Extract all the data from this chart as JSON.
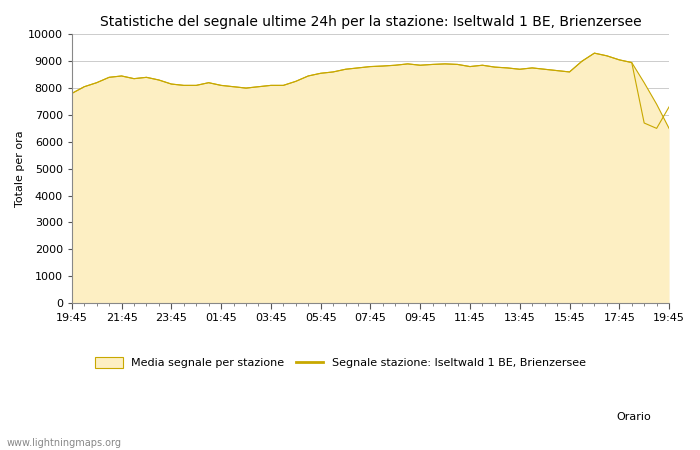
{
  "title": "Statistiche del segnale ultime 24h per la stazione: Iseltwald 1 BE, Brienzersee",
  "xlabel": "Orario",
  "ylabel": "Totale per ora",
  "ylim": [
    0,
    10000
  ],
  "yticks": [
    0,
    1000,
    2000,
    3000,
    4000,
    5000,
    6000,
    7000,
    8000,
    9000,
    10000
  ],
  "xtick_labels": [
    "19:45",
    "21:45",
    "23:45",
    "01:45",
    "03:45",
    "05:45",
    "07:45",
    "09:45",
    "11:45",
    "13:45",
    "15:45",
    "17:45",
    "19:45"
  ],
  "fill_color": "#FDEFC3",
  "fill_edge_color": "#C8A800",
  "line_color": "#C8A800",
  "background_color": "#FFFFFF",
  "grid_color": "#CCCCCC",
  "legend_label_fill": "Media segnale per stazione",
  "legend_label_line": "Segnale stazione: Iseltwald 1 BE, Brienzersee",
  "watermark": "www.lightningmaps.org",
  "title_fontsize": 10,
  "axis_fontsize": 8,
  "tick_fontsize": 8,
  "x_values": [
    0,
    1,
    2,
    3,
    4,
    5,
    6,
    7,
    8,
    9,
    10,
    11,
    12,
    13,
    14,
    15,
    16,
    17,
    18,
    19,
    20,
    21,
    22,
    23,
    24,
    25,
    26,
    27,
    28,
    29,
    30,
    31,
    32,
    33,
    34,
    35,
    36,
    37,
    38,
    39,
    40,
    41,
    42,
    43,
    44,
    45,
    46,
    47,
    48
  ],
  "y_values": [
    7800,
    8050,
    8200,
    8400,
    8450,
    8350,
    8400,
    8300,
    8150,
    8100,
    8100,
    8200,
    8100,
    8050,
    8000,
    8050,
    8100,
    8100,
    8250,
    8450,
    8550,
    8600,
    8700,
    8750,
    8800,
    8820,
    8850,
    8900,
    8850,
    8880,
    8900,
    8880,
    8800,
    8850,
    8780,
    8750,
    8700,
    8750,
    8700,
    8650,
    8600,
    9000,
    9300,
    9200,
    9050,
    8950,
    8200,
    7400,
    6500
  ],
  "y_station": [
    7800,
    8050,
    8200,
    8400,
    8450,
    8350,
    8400,
    8300,
    8150,
    8100,
    8100,
    8200,
    8100,
    8050,
    8000,
    8050,
    8100,
    8100,
    8250,
    8450,
    8550,
    8600,
    8700,
    8750,
    8800,
    8820,
    8850,
    8900,
    8850,
    8880,
    8900,
    8880,
    8800,
    8850,
    8780,
    8750,
    8700,
    8750,
    8700,
    8650,
    8600,
    9000,
    9300,
    9200,
    9050,
    8950,
    6700,
    6500,
    7300
  ]
}
